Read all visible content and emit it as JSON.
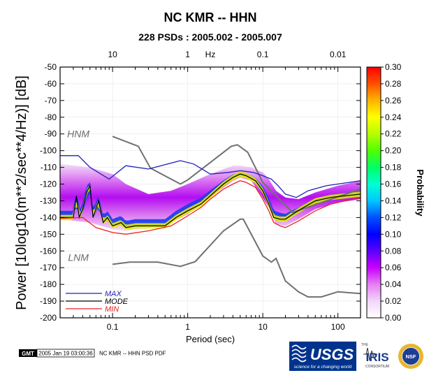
{
  "title": "NC KMR -- HHN",
  "subtitle": "228 PSDs : 2005.002 - 2005.007",
  "footer": {
    "gmt_logo": "GMT",
    "timestamp": "2005 Jan 19 03:00:36",
    "caption": "NC KMR -- HHN PSD PDF",
    "logos": {
      "usgs": "USGS",
      "usgs_tagline": "science for a changing world",
      "iris_small": "THE",
      "iris": "IRIS",
      "iris_sub": "CONSORTIUM",
      "nsf": "NSF"
    }
  },
  "chart_data": {
    "type": "heatmap",
    "title": "NC KMR -- HHN",
    "subtitle": "228 PSDs : 2005.002 - 2005.007",
    "xlabel": "Period (sec)",
    "ylabel": "Power [10log10(m**2/sec**4/Hz)] [dB]",
    "x_scale": "log",
    "xlim": [
      0.02,
      200
    ],
    "ylim": [
      -200,
      -50
    ],
    "x_ticks": [
      {
        "value": 0.1,
        "label": "0.1"
      },
      {
        "value": 1,
        "label": "1"
      },
      {
        "value": 10,
        "label": "10"
      },
      {
        "value": 100,
        "label": "100"
      }
    ],
    "y_ticks": [
      {
        "value": -50,
        "label": "-50"
      },
      {
        "value": -60,
        "label": "-60"
      },
      {
        "value": -70,
        "label": "-70"
      },
      {
        "value": -80,
        "label": "-80"
      },
      {
        "value": -90,
        "label": "-90"
      },
      {
        "value": -100,
        "label": "-100"
      },
      {
        "value": -110,
        "label": "-110"
      },
      {
        "value": -120,
        "label": "-120"
      },
      {
        "value": -130,
        "label": "-130"
      },
      {
        "value": -140,
        "label": "-140"
      },
      {
        "value": -150,
        "label": "-150"
      },
      {
        "value": -160,
        "label": "-160"
      },
      {
        "value": -170,
        "label": "-170"
      },
      {
        "value": -180,
        "label": "-180"
      },
      {
        "value": -190,
        "label": "-190"
      },
      {
        "value": -200,
        "label": "-200"
      }
    ],
    "top_axis": {
      "label": "Hz",
      "label_at_period": 2,
      "ticks": [
        {
          "period": 0.1,
          "label": "10"
        },
        {
          "period": 1,
          "label": "1"
        },
        {
          "period": 10,
          "label": "0.1"
        },
        {
          "period": 100,
          "label": "0.01"
        }
      ]
    },
    "colorbar": {
      "label": "Probability",
      "range": [
        0,
        0.3
      ],
      "ticks": [
        {
          "value": 0.0,
          "label": "0.00"
        },
        {
          "value": 0.02,
          "label": "0.02"
        },
        {
          "value": 0.04,
          "label": "0.04"
        },
        {
          "value": 0.06,
          "label": "0.06"
        },
        {
          "value": 0.08,
          "label": "0.08"
        },
        {
          "value": 0.1,
          "label": "0.10"
        },
        {
          "value": 0.12,
          "label": "0.12"
        },
        {
          "value": 0.14,
          "label": "0.14"
        },
        {
          "value": 0.16,
          "label": "0.16"
        },
        {
          "value": 0.18,
          "label": "0.18"
        },
        {
          "value": 0.2,
          "label": "0.20"
        },
        {
          "value": 0.22,
          "label": "0.22"
        },
        {
          "value": 0.24,
          "label": "0.24"
        },
        {
          "value": 0.26,
          "label": "0.26"
        },
        {
          "value": 0.28,
          "label": "0.28"
        },
        {
          "value": 0.3,
          "label": "0.30"
        }
      ],
      "colors": [
        "#ffffff",
        "#f2d6fa",
        "#e67ff2",
        "#c800ff",
        "#5a00ff",
        "#0000ff",
        "#0050ff",
        "#00c8ff",
        "#00ffd2",
        "#00ff64",
        "#50ff00",
        "#b4ff00",
        "#ffff00",
        "#ffb400",
        "#ff5000",
        "#ff0000"
      ]
    },
    "noise_models": [
      {
        "name": "HNM",
        "label_at": {
          "x": 0.035,
          "y": -92
        },
        "color": "#707070",
        "points": [
          [
            0.1,
            -91.5
          ],
          [
            0.22,
            -97.4
          ],
          [
            0.32,
            -110.5
          ],
          [
            0.8,
            -120
          ],
          [
            1.0,
            -117.5
          ],
          [
            3.8,
            -97.4
          ],
          [
            4.6,
            -96.5
          ],
          [
            6.3,
            -101
          ],
          [
            10,
            -119
          ],
          [
            15,
            -127
          ],
          [
            25,
            -137
          ],
          [
            200,
            -123
          ]
        ]
      },
      {
        "name": "LNM",
        "label_at": {
          "x": 0.035,
          "y": -166
        },
        "color": "#707070",
        "points": [
          [
            0.1,
            -168
          ],
          [
            0.17,
            -166.7
          ],
          [
            0.4,
            -166.7
          ],
          [
            0.8,
            -169.2
          ],
          [
            1.26,
            -166.4
          ],
          [
            3,
            -148
          ],
          [
            5,
            -141
          ],
          [
            5.5,
            -141
          ],
          [
            10,
            -163
          ],
          [
            13,
            -166.7
          ],
          [
            15,
            -164.5
          ],
          [
            20,
            -178
          ],
          [
            30,
            -184.5
          ],
          [
            40,
            -187.5
          ],
          [
            60,
            -187.5
          ],
          [
            100,
            -184.4
          ],
          [
            200,
            -185.5
          ]
        ]
      }
    ],
    "series": [
      {
        "name": "MAX",
        "color": "#1f1fbf",
        "points": [
          [
            0.02,
            -103
          ],
          [
            0.035,
            -103
          ],
          [
            0.05,
            -110
          ],
          [
            0.09,
            -117
          ],
          [
            0.15,
            -109
          ],
          [
            0.3,
            -111
          ],
          [
            0.8,
            -106
          ],
          [
            1.2,
            -108
          ],
          [
            2,
            -114
          ],
          [
            3.5,
            -113
          ],
          [
            5,
            -112
          ],
          [
            7.5,
            -113
          ],
          [
            10,
            -115
          ],
          [
            13,
            -117
          ],
          [
            16,
            -121
          ],
          [
            20,
            -126
          ],
          [
            28,
            -128
          ],
          [
            40,
            -124
          ],
          [
            70,
            -121
          ],
          [
            200,
            -118
          ]
        ]
      },
      {
        "name": "MODE",
        "color": "#000000",
        "points": [
          [
            0.02,
            -140
          ],
          [
            0.03,
            -140
          ],
          [
            0.033,
            -127
          ],
          [
            0.036,
            -140
          ],
          [
            0.04,
            -135
          ],
          [
            0.045,
            -125
          ],
          [
            0.05,
            -121
          ],
          [
            0.055,
            -140
          ],
          [
            0.065,
            -130
          ],
          [
            0.075,
            -143
          ],
          [
            0.085,
            -140
          ],
          [
            0.1,
            -145
          ],
          [
            0.13,
            -143
          ],
          [
            0.15,
            -146
          ],
          [
            0.2,
            -145
          ],
          [
            0.3,
            -145
          ],
          [
            0.5,
            -145
          ],
          [
            0.7,
            -140
          ],
          [
            1,
            -136
          ],
          [
            1.5,
            -132
          ],
          [
            2,
            -127
          ],
          [
            3,
            -120
          ],
          [
            4,
            -116
          ],
          [
            5,
            -114
          ],
          [
            6,
            -115
          ],
          [
            8,
            -118
          ],
          [
            10,
            -124
          ],
          [
            12,
            -132
          ],
          [
            14,
            -140
          ],
          [
            17,
            -141
          ],
          [
            20,
            -141
          ],
          [
            25,
            -138
          ],
          [
            35,
            -134
          ],
          [
            50,
            -130
          ],
          [
            80,
            -128
          ],
          [
            200,
            -126
          ]
        ]
      },
      {
        "name": "MIN",
        "color": "#ee2020",
        "points": [
          [
            0.02,
            -140.5
          ],
          [
            0.04,
            -140
          ],
          [
            0.06,
            -146
          ],
          [
            0.1,
            -149
          ],
          [
            0.15,
            -150
          ],
          [
            0.3,
            -148
          ],
          [
            0.6,
            -145
          ],
          [
            1,
            -139
          ],
          [
            1.5,
            -134
          ],
          [
            2,
            -129
          ],
          [
            3,
            -123
          ],
          [
            4,
            -120
          ],
          [
            5,
            -118
          ],
          [
            6,
            -119
          ],
          [
            8,
            -122
          ],
          [
            10,
            -129
          ],
          [
            12,
            -136
          ],
          [
            14,
            -143
          ],
          [
            17,
            -145
          ],
          [
            20,
            -146
          ],
          [
            30,
            -142
          ],
          [
            50,
            -136
          ],
          [
            80,
            -132
          ],
          [
            200,
            -128
          ]
        ]
      }
    ],
    "density_band": {
      "upper": [
        [
          0.02,
          -108
        ],
        [
          0.05,
          -110
        ],
        [
          0.1,
          -114
        ],
        [
          0.15,
          -120
        ],
        [
          0.3,
          -126
        ],
        [
          0.6,
          -124
        ],
        [
          1,
          -120
        ],
        [
          2,
          -114
        ],
        [
          4,
          -109
        ],
        [
          5,
          -109
        ],
        [
          7,
          -110
        ],
        [
          10,
          -113
        ],
        [
          12,
          -117
        ],
        [
          15,
          -124
        ],
        [
          20,
          -128
        ],
        [
          30,
          -129
        ],
        [
          50,
          -125
        ],
        [
          100,
          -121
        ],
        [
          200,
          -118
        ]
      ],
      "lower": [
        [
          0.02,
          -141
        ],
        [
          0.05,
          -143
        ],
        [
          0.1,
          -147
        ],
        [
          0.15,
          -148
        ],
        [
          0.3,
          -146
        ],
        [
          0.6,
          -143
        ],
        [
          1,
          -138
        ],
        [
          2,
          -128
        ],
        [
          3,
          -122
        ],
        [
          4,
          -118
        ],
        [
          5,
          -116
        ],
        [
          7,
          -118
        ],
        [
          10,
          -128
        ],
        [
          12,
          -134
        ],
        [
          15,
          -144
        ],
        [
          20,
          -145
        ],
        [
          30,
          -141
        ],
        [
          50,
          -135
        ],
        [
          100,
          -131
        ],
        [
          200,
          -129
        ]
      ]
    },
    "legend": {
      "entries": [
        "MAX",
        "MODE",
        "MIN"
      ],
      "placement": "bottom-left"
    },
    "grid": true
  }
}
